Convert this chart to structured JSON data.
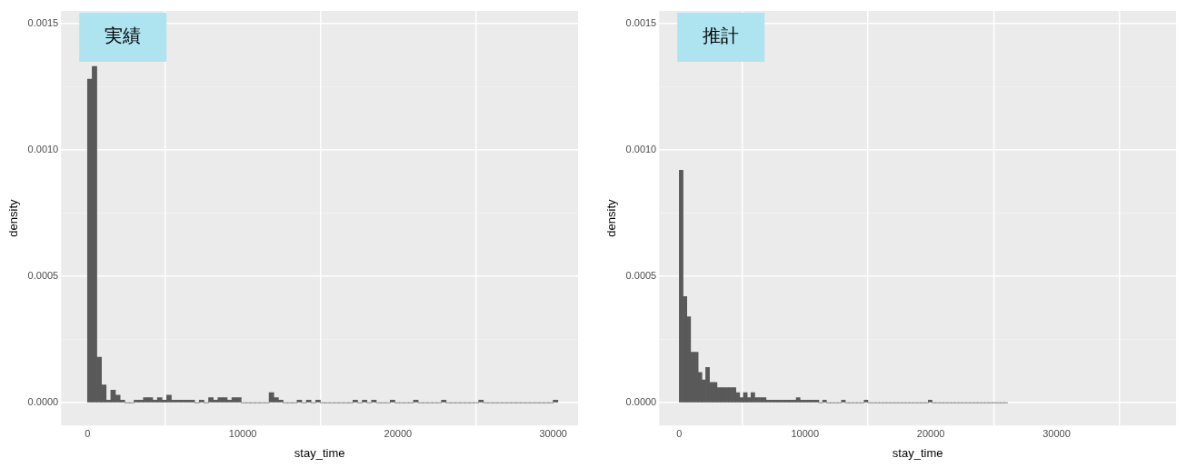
{
  "chart_data": [
    {
      "type": "histogram",
      "xlabel": "stay_time",
      "ylabel": "density",
      "annotations": [
        "実績"
      ],
      "color": "#595959",
      "grid": true,
      "xlim": [
        -1700,
        31600
      ],
      "ylim": [
        -9e-05,
        0.00155
      ],
      "xticks": [
        0,
        10000,
        20000,
        30000
      ],
      "yticks": [
        {
          "value": 0,
          "label": "0.0000"
        },
        {
          "value": 0.0005,
          "label": "0.0005"
        },
        {
          "value": 0.001,
          "label": "0.0010"
        },
        {
          "value": 0.0015,
          "label": "0.0015"
        }
      ],
      "bins": [
        0,
        300,
        600,
        900,
        1200,
        1500,
        1800,
        2100,
        2400,
        2700,
        3000,
        3300,
        3600,
        3900,
        4200,
        4500,
        4800,
        5100,
        5400,
        5700,
        6000,
        6300,
        6600,
        6900,
        7200,
        7500,
        7800,
        8100,
        8400,
        8700,
        9000,
        9300,
        9600,
        9900,
        10200,
        10500,
        10800,
        11100,
        11400,
        11700,
        12000,
        12300,
        12600,
        12900,
        13200,
        13500,
        13800,
        14100,
        14400,
        14700,
        15000,
        15300,
        15600,
        15900,
        16200,
        16500,
        16800,
        17100,
        17400,
        17700,
        18000,
        18300,
        18600,
        18900,
        19200,
        19500,
        19800,
        20100,
        20400,
        20700,
        21000,
        21300,
        21600,
        21900,
        22200,
        22500,
        22800,
        23100,
        23400,
        23700,
        24000,
        24300,
        24600,
        24900,
        25200,
        25500,
        25800,
        26100,
        26400,
        26700,
        27000,
        27300,
        27600,
        27900,
        28200,
        28500,
        28800,
        29100,
        29400,
        29700,
        30000,
        30300
      ],
      "values": [
        0.00128,
        0.00133,
        0.00018,
        7e-05,
        1e-05,
        5e-05,
        3e-05,
        1e-05,
        0,
        0,
        1e-05,
        1e-05,
        2e-05,
        2e-05,
        1e-05,
        2e-05,
        1e-05,
        3e-05,
        1e-05,
        1e-05,
        1e-05,
        1e-05,
        1e-05,
        0,
        1e-05,
        0,
        2e-05,
        1e-05,
        2e-05,
        2e-05,
        1e-05,
        2e-05,
        2e-05,
        0,
        0,
        0,
        0,
        0,
        0,
        4e-05,
        2e-05,
        1e-05,
        0,
        0,
        0,
        1e-05,
        0,
        1e-05,
        0,
        1e-05,
        0,
        0,
        0,
        0,
        0,
        0,
        0,
        1e-05,
        0,
        1e-05,
        0,
        1e-05,
        0,
        0,
        0,
        1e-05,
        0,
        0,
        0,
        0,
        1e-05,
        0,
        0,
        0,
        0,
        0,
        1e-05,
        0,
        0,
        0,
        0,
        0,
        0,
        0,
        1e-05,
        0,
        0,
        0,
        0,
        0,
        0,
        0,
        0,
        0,
        0,
        0,
        0,
        0,
        0,
        0,
        1e-05
      ]
    },
    {
      "type": "histogram",
      "xlabel": "stay_time",
      "ylabel": "density",
      "annotations": [
        "推計"
      ],
      "color": "#595959",
      "grid": true,
      "xlim": [
        -1600,
        39500
      ],
      "ylim": [
        -9e-05,
        0.00155
      ],
      "xticks": [
        0,
        10000,
        20000,
        30000
      ],
      "yticks": [
        {
          "value": 0,
          "label": "0.0000"
        },
        {
          "value": 0.0005,
          "label": "0.0005"
        },
        {
          "value": 0.001,
          "label": "0.0010"
        },
        {
          "value": 0.0015,
          "label": "0.0015"
        }
      ],
      "bins": [
        0,
        300,
        600,
        900,
        1200,
        1500,
        1800,
        2100,
        2400,
        2700,
        3000,
        3300,
        3600,
        3900,
        4200,
        4500,
        4800,
        5100,
        5400,
        5700,
        6000,
        6300,
        6600,
        6900,
        7200,
        7500,
        7800,
        8100,
        8400,
        8700,
        9000,
        9300,
        9600,
        9900,
        10200,
        10500,
        10800,
        11100,
        11400,
        11700,
        12000,
        12300,
        12600,
        12900,
        13200,
        13500,
        13800,
        14100,
        14400,
        14700,
        15000,
        15300,
        15600,
        15900,
        16200,
        16500,
        16800,
        17100,
        17400,
        17700,
        18000,
        18300,
        18600,
        18900,
        19200,
        19500,
        19800,
        20100,
        20400,
        20700,
        21000,
        21300,
        21600,
        21900,
        22200,
        22500,
        22800,
        23100,
        23400,
        23700,
        24000,
        24300,
        24600,
        24900,
        25200,
        25500,
        25800,
        26100
      ],
      "values": [
        0.00092,
        0.00042,
        0.00034,
        0.0002,
        0.0002,
        0.00012,
        9e-05,
        0.00014,
        8e-05,
        8e-05,
        6e-05,
        6e-05,
        6e-05,
        6e-05,
        6e-05,
        4e-05,
        2e-05,
        4e-05,
        2e-05,
        4e-05,
        2e-05,
        2e-05,
        2e-05,
        1e-05,
        1e-05,
        1e-05,
        1e-05,
        1e-05,
        1e-05,
        1e-05,
        1e-05,
        2e-05,
        1e-05,
        1e-05,
        1e-05,
        1e-05,
        1e-05,
        0,
        1e-05,
        0,
        0,
        0,
        0,
        1e-05,
        0,
        0,
        0,
        0,
        0,
        1e-05,
        0,
        0,
        0,
        0,
        0,
        0,
        0,
        0,
        0,
        0,
        0,
        0,
        0,
        0,
        0,
        0,
        1e-05,
        0,
        0,
        0,
        0,
        0,
        0,
        0,
        0,
        0,
        0,
        0,
        0,
        0,
        0,
        0,
        0,
        0,
        0,
        0,
        0
      ]
    }
  ]
}
